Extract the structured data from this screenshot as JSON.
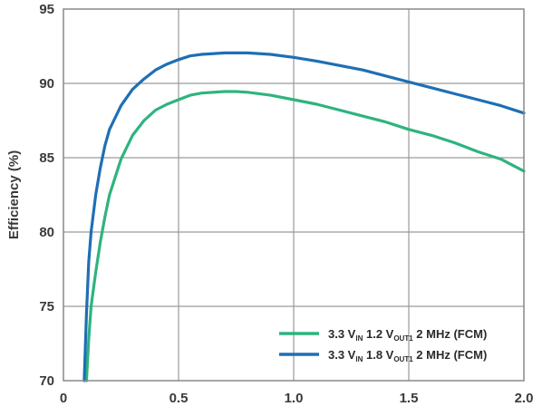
{
  "chart_data": {
    "type": "line",
    "title": "",
    "xlabel": "",
    "ylabel": "Efficiency (%)",
    "xlim": [
      0,
      2.0
    ],
    "ylim": [
      70,
      95
    ],
    "xticks": [
      0,
      0.5,
      1.0,
      1.5,
      2.0
    ],
    "xtick_labels": [
      "0",
      "0.5",
      "1.0",
      "1.5",
      "2.0"
    ],
    "yticks": [
      70,
      75,
      80,
      85,
      90,
      95
    ],
    "ytick_labels": [
      "70",
      "75",
      "80",
      "85",
      "90",
      "95"
    ],
    "grid": true,
    "legend_position": "bottom-right",
    "series": [
      {
        "name_parts": {
          "lead": "3.3 V",
          "sub1": "IN",
          "mid": " 1.2 V",
          "sub2": "OUT1",
          "tail": " 2 MHz (FCM)"
        },
        "color": "#2fb37f",
        "x": [
          0.1,
          0.11,
          0.12,
          0.14,
          0.16,
          0.18,
          0.2,
          0.25,
          0.3,
          0.35,
          0.4,
          0.45,
          0.5,
          0.55,
          0.6,
          0.7,
          0.75,
          0.8,
          0.9,
          1.0,
          1.1,
          1.2,
          1.3,
          1.4,
          1.5,
          1.6,
          1.7,
          1.8,
          1.9,
          2.0
        ],
        "y": [
          70.0,
          72.8,
          75.0,
          77.3,
          79.3,
          81.0,
          82.5,
          84.9,
          86.5,
          87.5,
          88.2,
          88.6,
          88.9,
          89.2,
          89.35,
          89.45,
          89.45,
          89.4,
          89.2,
          88.9,
          88.6,
          88.2,
          87.8,
          87.4,
          86.9,
          86.5,
          86.0,
          85.4,
          84.9,
          84.1
        ]
      },
      {
        "name_parts": {
          "lead": "3.3 V",
          "sub1": "IN",
          "mid": " 1.8 V",
          "sub2": "OUT1",
          "tail": " 2 MHz (FCM)"
        },
        "color": "#1e6fb4",
        "x": [
          0.09,
          0.1,
          0.11,
          0.12,
          0.14,
          0.16,
          0.18,
          0.2,
          0.25,
          0.3,
          0.35,
          0.4,
          0.45,
          0.5,
          0.55,
          0.6,
          0.7,
          0.8,
          0.9,
          1.0,
          1.1,
          1.2,
          1.3,
          1.4,
          1.5,
          1.6,
          1.7,
          1.8,
          1.9,
          2.0
        ],
        "y": [
          70.0,
          74.5,
          78.0,
          80.0,
          82.5,
          84.3,
          85.8,
          86.9,
          88.5,
          89.6,
          90.3,
          90.9,
          91.3,
          91.6,
          91.85,
          91.95,
          92.05,
          92.05,
          91.95,
          91.75,
          91.5,
          91.2,
          90.9,
          90.5,
          90.1,
          89.7,
          89.3,
          88.9,
          88.5,
          88.0
        ]
      }
    ]
  }
}
